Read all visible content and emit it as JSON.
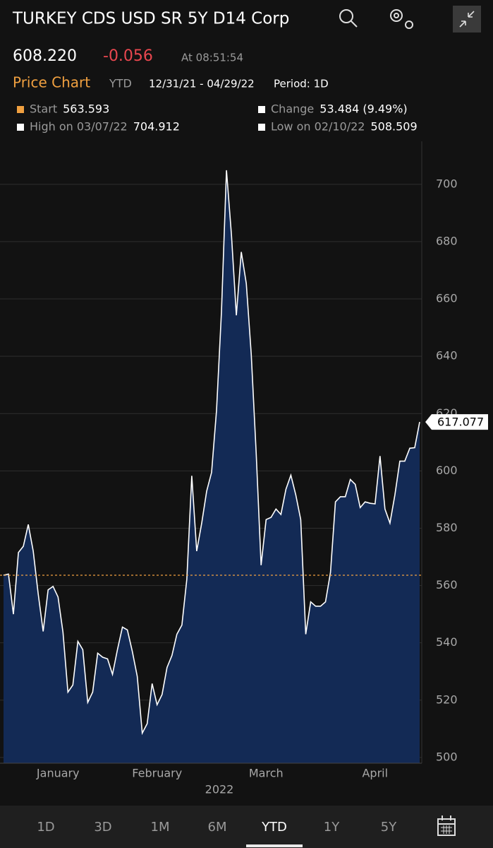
{
  "header": {
    "title": "TURKEY CDS USD SR 5Y D14 Corp",
    "price": "608.220",
    "change": "-0.056",
    "time": "At 08:51:54"
  },
  "subheader": {
    "name": "Price Chart",
    "range": "YTD",
    "dates": "12/31/21 - 04/29/22",
    "period": "Period: 1D"
  },
  "stats": [
    {
      "label": "Start",
      "value": 563.593
    },
    {
      "label": "Change",
      "value": "53.484 (9.49%)"
    },
    {
      "label": "High on 03/07/22",
      "value": 704.912
    },
    {
      "label": "Low on 02/10/22",
      "value": 508.509
    }
  ],
  "chart_data": {
    "type": "area",
    "categories": [
      null,
      null,
      null,
      null,
      null,
      null,
      null,
      null,
      null,
      null,
      null,
      "January",
      null,
      null,
      null,
      null,
      null,
      null,
      null,
      null,
      null,
      null,
      null,
      null,
      null,
      null,
      null,
      null,
      null,
      null,
      null,
      "February",
      null,
      null,
      null,
      null,
      null,
      null,
      null,
      null,
      null,
      null,
      null,
      null,
      null,
      null,
      null,
      null,
      null,
      null,
      null,
      null,
      null,
      "March",
      null,
      null,
      null,
      null,
      null,
      null,
      null,
      null,
      null,
      null,
      null,
      null,
      null,
      null,
      null,
      null,
      null,
      null,
      null,
      null,
      null,
      "April",
      null,
      null,
      null,
      null,
      null,
      null,
      null,
      null,
      null
    ],
    "year_label": "2022",
    "series": [
      {
        "name": "TURKEY CDS USD SR 5Y D14 Corp",
        "color": "#ffffff",
        "fill": "#132a55",
        "values": [
          563.593,
          564,
          550,
          571.5,
          573.7,
          581.3,
          572,
          557,
          544,
          558.5,
          559.7,
          556,
          543.7,
          522.8,
          525.3,
          540.5,
          537.6,
          519.2,
          522.8,
          536.4,
          535,
          534.4,
          529,
          537.6,
          545.5,
          544.5,
          537,
          528.3,
          508.509,
          511.8,
          525.8,
          518.4,
          522,
          531.4,
          535.6,
          543,
          546.2,
          562.2,
          598.3,
          572,
          581.8,
          592.9,
          599.5,
          621.1,
          655.5,
          704.912,
          682.6,
          654.3,
          676.4,
          665.4,
          640.8,
          606.4,
          567.1,
          583,
          583.8,
          586.7,
          584.8,
          593.6,
          598.5,
          591.6,
          583,
          543,
          554.3,
          552.8,
          552.8,
          554.3,
          564.6,
          589.2,
          591,
          591,
          597,
          595.3,
          587.2,
          589.2,
          588.7,
          588.5,
          605.2,
          586.7,
          581.8,
          591.6,
          603.4,
          603.4,
          607.9,
          608.1,
          617.077
        ]
      }
    ],
    "ylim": [
      498,
      715
    ],
    "yticks": [
      500,
      520,
      540,
      560,
      580,
      600,
      620,
      640,
      660,
      680,
      700
    ],
    "grid": true,
    "reference_color": "#f0a040"
  },
  "tabs": [
    {
      "label": "1D",
      "selected": false
    },
    {
      "label": "3D",
      "selected": false
    },
    {
      "label": "1M",
      "selected": false
    },
    {
      "label": "6M",
      "selected": false
    },
    {
      "label": "YTD",
      "selected": true
    },
    {
      "label": "1Y",
      "selected": false
    },
    {
      "label": "5Y",
      "selected": false
    }
  ]
}
